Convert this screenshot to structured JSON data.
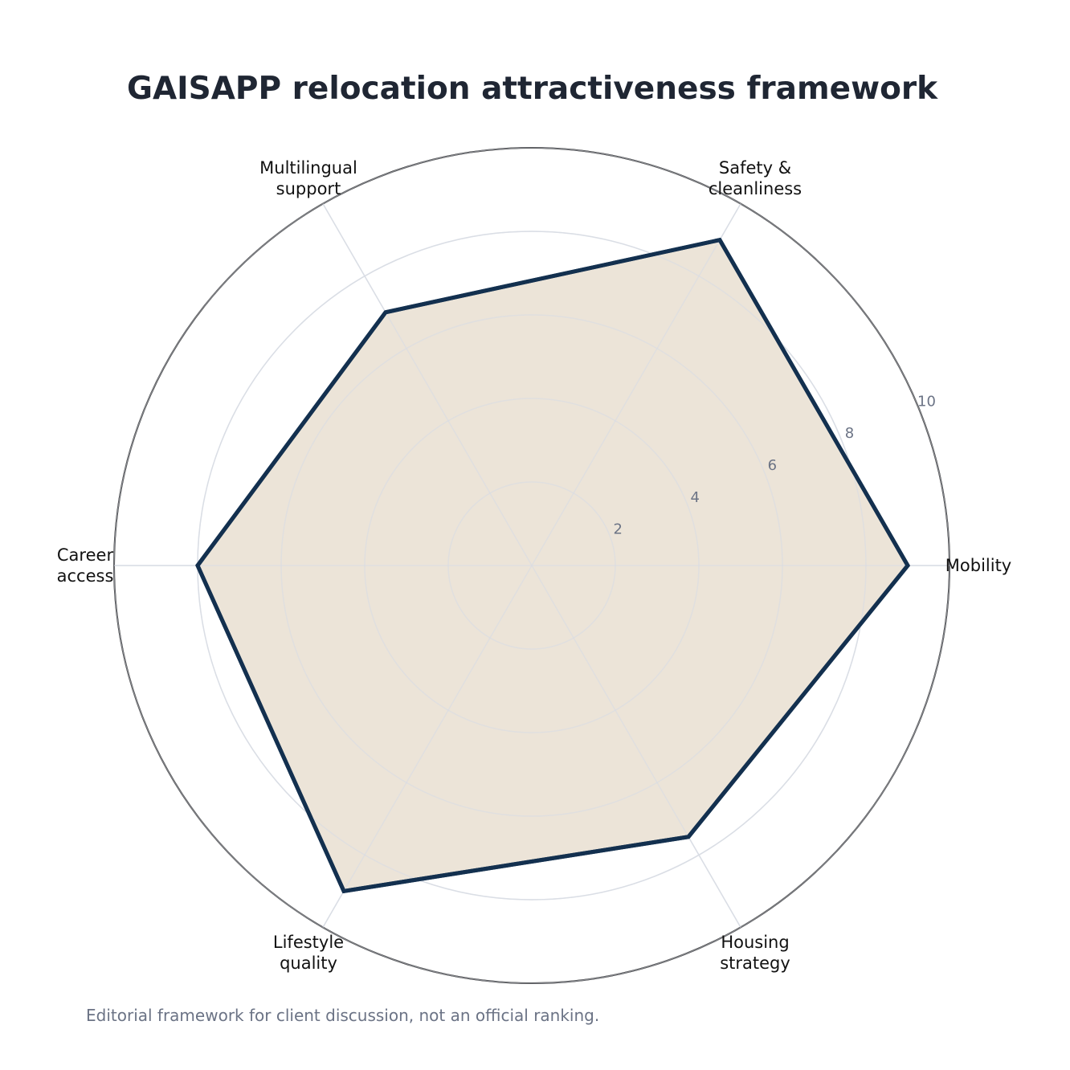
{
  "chart_data": {
    "type": "radar",
    "title": "GAISAPP relocation attractiveness framework",
    "categories": [
      "Mobility",
      "Safety &\ncleanliness",
      "Multilingual\nsupport",
      "Career\naccess",
      "Lifestyle\nquality",
      "Housing\nstrategy"
    ],
    "values": [
      9,
      9,
      7,
      8,
      9,
      7.5
    ],
    "color": "#13304f",
    "fill": "#ece4d8",
    "rlim": [
      0,
      10
    ],
    "rticks": [
      2,
      4,
      6,
      8,
      10
    ],
    "grid": true,
    "footnote": "Editorial framework for client discussion, not an official ranking."
  }
}
